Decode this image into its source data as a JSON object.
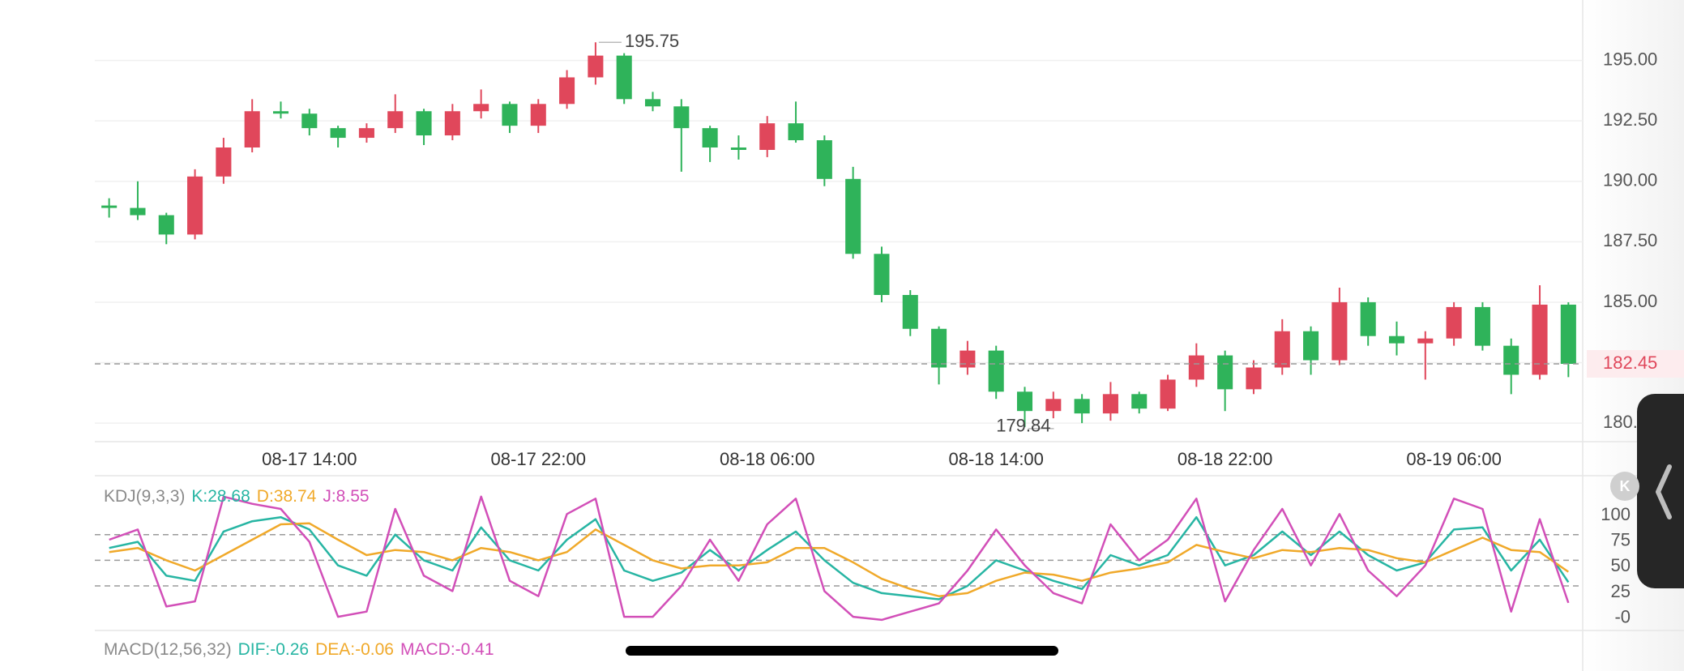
{
  "chart_data": [
    {
      "type": "candlestick",
      "categories": [
        null,
        null,
        null,
        null,
        null,
        null,
        null,
        "08-17 14:00",
        null,
        null,
        null,
        null,
        null,
        null,
        null,
        "08-17 22:00",
        null,
        null,
        null,
        null,
        null,
        null,
        null,
        "08-18 06:00",
        null,
        null,
        null,
        null,
        null,
        null,
        null,
        "08-18 14:00",
        null,
        null,
        null,
        null,
        null,
        null,
        null,
        "08-18 22:00",
        null,
        null,
        null,
        null,
        null,
        null,
        null,
        "08-19 06:00",
        null,
        null,
        null,
        null
      ],
      "open": [
        189.0,
        188.9,
        188.6,
        187.8,
        190.2,
        191.4,
        192.9,
        192.8,
        192.2,
        191.8,
        192.2,
        192.9,
        191.9,
        192.9,
        193.2,
        192.3,
        193.2,
        194.3,
        195.2,
        193.4,
        193.1,
        192.2,
        191.4,
        191.3,
        192.4,
        191.7,
        190.1,
        187.0,
        185.3,
        183.9,
        182.3,
        183.0,
        181.3,
        180.5,
        181.0,
        180.4,
        181.2,
        180.6,
        181.8,
        182.8,
        181.4,
        182.3,
        183.8,
        182.6,
        185.0,
        183.6,
        183.3,
        183.5,
        184.8,
        183.2,
        182.0,
        184.9
      ],
      "high": [
        189.3,
        190.0,
        188.7,
        190.5,
        191.8,
        193.4,
        193.3,
        193.0,
        192.3,
        192.4,
        193.6,
        193.0,
        193.2,
        193.8,
        193.3,
        193.4,
        194.6,
        195.75,
        195.3,
        193.7,
        193.4,
        192.3,
        191.9,
        192.7,
        193.3,
        191.9,
        190.6,
        187.3,
        185.5,
        184.0,
        183.4,
        183.2,
        181.5,
        181.3,
        181.2,
        181.7,
        181.3,
        182.0,
        183.3,
        183.0,
        182.6,
        184.3,
        184.0,
        185.6,
        185.2,
        184.2,
        183.8,
        185.0,
        185.0,
        183.5,
        185.7,
        185.0
      ],
      "low": [
        188.5,
        188.4,
        187.4,
        187.6,
        189.9,
        191.2,
        192.6,
        191.9,
        191.4,
        191.6,
        192.0,
        191.5,
        191.7,
        192.6,
        192.0,
        192.0,
        193.0,
        194.0,
        193.2,
        192.9,
        190.4,
        190.8,
        190.9,
        191.0,
        191.6,
        189.8,
        186.8,
        185.0,
        183.6,
        181.6,
        182.0,
        181.0,
        179.84,
        180.2,
        180.0,
        180.1,
        180.4,
        180.5,
        181.5,
        180.5,
        181.2,
        182.0,
        182.0,
        182.4,
        183.2,
        182.8,
        181.8,
        183.2,
        183.0,
        181.2,
        181.8,
        181.9
      ],
      "close": [
        188.9,
        188.6,
        187.8,
        190.2,
        191.4,
        192.9,
        192.8,
        192.2,
        191.8,
        192.2,
        192.9,
        191.9,
        192.9,
        193.2,
        192.3,
        193.2,
        194.3,
        195.2,
        193.4,
        193.1,
        192.2,
        191.4,
        191.3,
        192.4,
        191.7,
        190.1,
        187.0,
        185.3,
        183.9,
        182.3,
        183.0,
        181.3,
        180.5,
        181.0,
        180.4,
        181.2,
        180.6,
        181.8,
        182.8,
        181.4,
        182.3,
        183.8,
        182.6,
        185.0,
        183.6,
        183.3,
        183.5,
        184.8,
        183.2,
        182.0,
        184.9,
        182.45
      ],
      "up_color": "#e0475b",
      "down_color": "#2fb35a",
      "ylim": [
        179.3,
        197.5
      ],
      "yticks": [
        {
          "value": 180,
          "label": "180.00"
        },
        {
          "value": 182.5,
          "label": "182.50"
        },
        {
          "value": 185,
          "label": "185.00"
        },
        {
          "value": 187.5,
          "label": "187.50"
        },
        {
          "value": 190,
          "label": "190.00"
        },
        {
          "value": 192.5,
          "label": "192.50"
        },
        {
          "value": 195,
          "label": "195.00"
        }
      ],
      "grid": true,
      "last_price": 182.45,
      "annotations": {
        "max": 195.75,
        "min": 179.84
      }
    },
    {
      "type": "line",
      "title": "KDJ(9,3,3)",
      "series": [
        {
          "name": "K:28.68",
          "color": "#27b5a3",
          "values": [
            62,
            68,
            35,
            30,
            78,
            88,
            92,
            80,
            45,
            35,
            75,
            50,
            40,
            82,
            50,
            40,
            70,
            90,
            40,
            30,
            38,
            60,
            40,
            60,
            78,
            50,
            28,
            18,
            15,
            12,
            25,
            50,
            40,
            30,
            22,
            55,
            45,
            55,
            92,
            45,
            55,
            78,
            55,
            78,
            55,
            40,
            48,
            80,
            82,
            40,
            70,
            28.68
          ]
        },
        {
          "name": "D:38.74",
          "color": "#f0a92a",
          "values": [
            58,
            62,
            50,
            40,
            55,
            70,
            85,
            86,
            70,
            55,
            60,
            58,
            50,
            62,
            58,
            50,
            58,
            80,
            65,
            50,
            42,
            45,
            45,
            48,
            62,
            62,
            48,
            32,
            22,
            15,
            18,
            30,
            38,
            36,
            30,
            38,
            42,
            48,
            65,
            58,
            52,
            60,
            58,
            62,
            60,
            52,
            48,
            60,
            72,
            60,
            58,
            38.74
          ]
        },
        {
          "name": "J:8.55",
          "color": "#d24fb8",
          "values": [
            70,
            80,
            5,
            10,
            112,
            105,
            100,
            68,
            -5,
            0,
            100,
            35,
            20,
            112,
            30,
            15,
            95,
            110,
            -5,
            -5,
            25,
            70,
            30,
            85,
            110,
            20,
            -5,
            -8,
            0,
            8,
            40,
            80,
            45,
            18,
            8,
            85,
            50,
            70,
            110,
            10,
            60,
            100,
            45,
            95,
            40,
            15,
            45,
            110,
            100,
            0,
            90,
            8.55
          ]
        }
      ],
      "ylim": [
        -16,
        130
      ],
      "yticks": [
        {
          "value": 0,
          "label": "-0"
        },
        25,
        50,
        75,
        100
      ],
      "grid": false,
      "hlines": [
        25,
        50,
        75
      ]
    }
  ],
  "indicator": {
    "title": "MACD(12,56,32)",
    "items": [
      {
        "text": "DIF:-0.26",
        "color": "#27b5a3"
      },
      {
        "text": "DEA:-0.06",
        "color": "#f0a92a"
      },
      {
        "text": "MACD:-0.41",
        "color": "#d24fb8"
      }
    ]
  },
  "side_button": "K"
}
